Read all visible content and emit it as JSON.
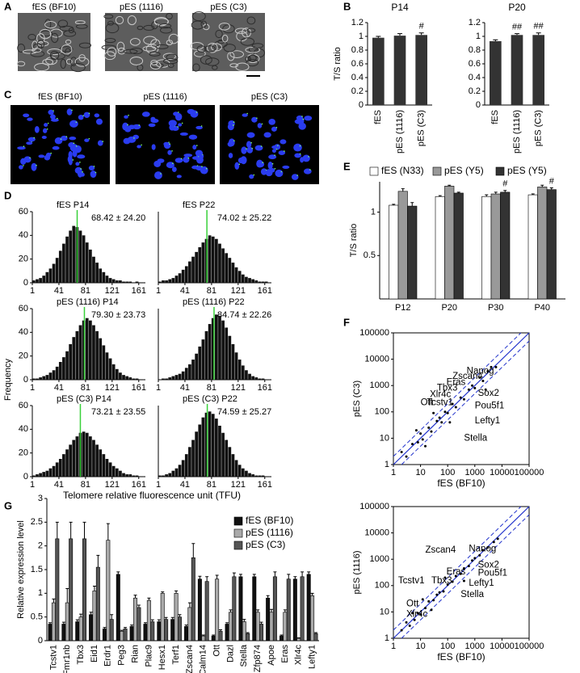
{
  "figure_panels": [
    {
      "panel": "A",
      "images": [
        "fES (BF10)",
        "pES (1116)",
        "pES (C3)"
      ]
    },
    {
      "panel": "C",
      "images": [
        "fES (BF10)",
        "pES (1116)",
        "pES (C3)"
      ]
    }
  ],
  "chart_data": [
    {
      "type": "bar",
      "panel": "B",
      "title": "P14",
      "ylabel": "T/S ratio",
      "categories": [
        "fES",
        "pES (1116)",
        "pES (C3)"
      ],
      "values": [
        0.98,
        1.01,
        1.02
      ],
      "errors": [
        0.02,
        0.03,
        0.03
      ],
      "significance": [
        null,
        null,
        "#"
      ],
      "color": "#333333",
      "ylim": [
        0,
        1.2
      ],
      "yticks": [
        0,
        0.2,
        0.4,
        0.6,
        0.8,
        1,
        1.2
      ]
    },
    {
      "type": "bar",
      "title": "P20",
      "categories": [
        "fES",
        "pES (1116)",
        "pES (C3)"
      ],
      "values": [
        0.93,
        1.02,
        1.02
      ],
      "errors": [
        0.02,
        0.02,
        0.03
      ],
      "significance": [
        null,
        "##",
        "##"
      ],
      "color": "#333333",
      "ylim": [
        0,
        1.2
      ],
      "yticks": [
        0,
        0.2,
        0.4,
        0.6,
        0.8,
        1,
        1.2
      ]
    },
    {
      "type": "histogram",
      "panel": "D",
      "title": "fES P14",
      "annotation": "68.42 ± 24.20",
      "mean": 68.42,
      "bins": [
        1,
        6,
        11,
        16,
        21,
        26,
        31,
        36,
        41,
        46,
        51,
        56,
        61,
        66,
        71,
        76,
        81,
        86,
        91,
        96,
        101,
        106,
        111,
        116,
        121,
        126,
        131,
        136,
        141,
        146,
        151,
        156,
        161,
        166,
        171
      ],
      "counts": [
        2,
        3,
        4,
        6,
        9,
        12,
        16,
        21,
        27,
        33,
        39,
        44,
        48,
        47,
        44,
        40,
        34,
        28,
        22,
        17,
        12,
        9,
        6,
        4,
        3,
        2,
        2,
        1,
        1,
        1,
        0,
        1,
        0,
        0
      ],
      "color": "#111111",
      "xlim": [
        1,
        171
      ],
      "xticks": [
        1,
        41,
        81,
        121,
        161
      ],
      "ylim": [
        0,
        60
      ],
      "yticks": [
        0,
        20,
        40,
        60
      ]
    },
    {
      "type": "histogram",
      "title": "fES P22",
      "annotation": "74.02 ± 25.22",
      "mean": 74.02,
      "bins": [
        1,
        6,
        11,
        16,
        21,
        26,
        31,
        36,
        41,
        46,
        51,
        56,
        61,
        66,
        71,
        76,
        81,
        86,
        91,
        96,
        101,
        106,
        111,
        116,
        121,
        126,
        131,
        136,
        141,
        146,
        151,
        156,
        161,
        166,
        171
      ],
      "counts": [
        1,
        2,
        2,
        3,
        4,
        6,
        8,
        11,
        14,
        18,
        22,
        26,
        30,
        34,
        37,
        40,
        39,
        37,
        33,
        29,
        25,
        21,
        17,
        13,
        10,
        7,
        5,
        4,
        3,
        2,
        1,
        1,
        1,
        0
      ],
      "color": "#111111",
      "xlim": [
        1,
        171
      ],
      "xticks": [
        1,
        41,
        81,
        121,
        161
      ],
      "ylim": [
        0,
        60
      ]
    },
    {
      "type": "histogram",
      "title": "pES (1116) P14",
      "annotation": "79.30 ± 23.73",
      "mean": 79.3,
      "ylabel": "Frequency",
      "bins": [
        1,
        6,
        11,
        16,
        21,
        26,
        31,
        36,
        41,
        46,
        51,
        56,
        61,
        66,
        71,
        76,
        81,
        86,
        91,
        96,
        101,
        106,
        111,
        116,
        121,
        126,
        131,
        136,
        141,
        146,
        151,
        156,
        161,
        166,
        171
      ],
      "counts": [
        1,
        1,
        2,
        3,
        4,
        6,
        8,
        11,
        15,
        19,
        24,
        30,
        36,
        41,
        46,
        50,
        52,
        50,
        46,
        41,
        35,
        29,
        23,
        18,
        13,
        9,
        6,
        4,
        3,
        2,
        1,
        1,
        0,
        0
      ],
      "color": "#111111",
      "xlim": [
        1,
        171
      ],
      "xticks": [
        1,
        41,
        81,
        121,
        161
      ],
      "ylim": [
        0,
        60
      ],
      "yticks": [
        0,
        20,
        40,
        60
      ]
    },
    {
      "type": "histogram",
      "title": "pES (1116) P22",
      "annotation": "84.74 ± 22.26",
      "mean": 84.74,
      "bins": [
        1,
        6,
        11,
        16,
        21,
        26,
        31,
        36,
        41,
        46,
        51,
        56,
        61,
        66,
        71,
        76,
        81,
        86,
        91,
        96,
        101,
        106,
        111,
        116,
        121,
        126,
        131,
        136,
        141,
        146,
        151,
        156,
        161,
        166,
        171
      ],
      "counts": [
        0,
        1,
        1,
        2,
        3,
        4,
        5,
        7,
        10,
        13,
        17,
        22,
        28,
        34,
        41,
        47,
        52,
        55,
        54,
        50,
        44,
        37,
        30,
        23,
        17,
        12,
        8,
        5,
        3,
        2,
        1,
        1,
        0,
        0
      ],
      "color": "#111111",
      "xlim": [
        1,
        171
      ],
      "xticks": [
        1,
        41,
        81,
        121,
        161
      ],
      "ylim": [
        0,
        60
      ]
    },
    {
      "type": "histogram",
      "title": "pES (C3) P14",
      "annotation": "73.21 ± 23.55",
      "mean": 73.21,
      "xlabel": "Telomere relative fluorescence unit (TFU)",
      "bins": [
        1,
        6,
        11,
        16,
        21,
        26,
        31,
        36,
        41,
        46,
        51,
        56,
        61,
        66,
        71,
        76,
        81,
        86,
        91,
        96,
        101,
        106,
        111,
        116,
        121,
        126,
        131,
        136,
        141,
        146,
        151,
        156,
        161,
        166,
        171
      ],
      "counts": [
        1,
        2,
        3,
        4,
        5,
        7,
        9,
        12,
        15,
        19,
        23,
        27,
        31,
        34,
        37,
        38,
        37,
        34,
        31,
        27,
        23,
        19,
        15,
        12,
        9,
        7,
        5,
        3,
        2,
        2,
        1,
        1,
        0,
        0
      ],
      "color": "#111111",
      "xlim": [
        1,
        171
      ],
      "xticks": [
        1,
        41,
        81,
        121,
        161
      ],
      "ylim": [
        0,
        60
      ],
      "yticks": [
        0,
        20,
        40,
        60
      ]
    },
    {
      "type": "histogram",
      "title": "pES (C3) P22",
      "annotation": "74.59 ± 25.27",
      "mean": 74.59,
      "bins": [
        1,
        6,
        11,
        16,
        21,
        26,
        31,
        36,
        41,
        46,
        51,
        56,
        61,
        66,
        71,
        76,
        81,
        86,
        91,
        96,
        101,
        106,
        111,
        116,
        121,
        126,
        131,
        136,
        141,
        146,
        151,
        156,
        161,
        166,
        171
      ],
      "counts": [
        1,
        1,
        2,
        3,
        5,
        7,
        10,
        14,
        19,
        25,
        31,
        38,
        44,
        50,
        54,
        55,
        53,
        49,
        43,
        37,
        31,
        25,
        19,
        14,
        10,
        7,
        5,
        3,
        2,
        1,
        1,
        1,
        0,
        0
      ],
      "color": "#111111",
      "xlim": [
        1,
        171
      ],
      "xticks": [
        1,
        41,
        81,
        121,
        161
      ],
      "ylim": [
        0,
        60
      ]
    },
    {
      "type": "grouped_bar",
      "panel": "E",
      "ylabel": "T/S ratio",
      "legend": "top",
      "categories": [
        "P12",
        "P20",
        "P30",
        "P40"
      ],
      "series": [
        {
          "name": "fES (N33)",
          "color": "#ffffff",
          "values": [
            1.08,
            1.18,
            1.18,
            1.2
          ],
          "errors": [
            0.01,
            0.01,
            0.02,
            0.01
          ]
        },
        {
          "name": "pES (Y5)",
          "color": "#999999",
          "values": [
            1.24,
            1.3,
            1.21,
            1.29
          ],
          "errors": [
            0.03,
            0.01,
            0.02,
            0.02
          ]
        },
        {
          "name": "pES (Y5)",
          "color": "#333333",
          "values": [
            1.07,
            1.22,
            1.23,
            1.26
          ],
          "errors": [
            0.04,
            0.01,
            0.02,
            0.02
          ],
          "significance": [
            null,
            null,
            "#",
            "#"
          ]
        }
      ],
      "ylim": [
        0,
        1.35
      ],
      "yticks": [
        0.5,
        1
      ]
    },
    {
      "type": "scatter",
      "panel": "F",
      "xlabel": "fES (BF10)",
      "ylabel": "pES (C3)",
      "scale": "log",
      "color": "#000000",
      "x": [
        2,
        3,
        5,
        8,
        10,
        12,
        20,
        25,
        40,
        50,
        60,
        80,
        100,
        150,
        200,
        300,
        400,
        600,
        800,
        1000,
        1500,
        2000,
        3000,
        4000,
        6000,
        7,
        15,
        30,
        120,
        2500
      ],
      "y": [
        3,
        2,
        6,
        7,
        15,
        9,
        25,
        18,
        45,
        60,
        40,
        100,
        90,
        200,
        150,
        350,
        300,
        700,
        1000,
        800,
        2000,
        1500,
        3500,
        5000,
        5000,
        20,
        5,
        90,
        40,
        700
      ],
      "annotations": [
        {
          "text": "Nanog",
          "x": 500,
          "y": 3500,
          "color": "#000000"
        },
        {
          "text": "Zscan4",
          "x": 150,
          "y": 2200,
          "color": "#d0201a"
        },
        {
          "text": "Eras",
          "x": 90,
          "y": 1300,
          "color": "#d0201a"
        },
        {
          "text": "Tbx3",
          "x": 40,
          "y": 800,
          "color": "#d0201a"
        },
        {
          "text": "Xlr4c",
          "x": 22,
          "y": 450,
          "color": "#d0201a"
        },
        {
          "text": "Ott",
          "x": 10,
          "y": 220,
          "color": "#d0201a"
        },
        {
          "text": "Tcstv1",
          "x": 17,
          "y": 220,
          "color": "#d0201a"
        },
        {
          "text": "Sox2",
          "x": 1300,
          "y": 500,
          "color": "#000000"
        },
        {
          "text": "Pou5f1",
          "x": 1000,
          "y": 170,
          "color": "#000000"
        },
        {
          "text": "Lefty1",
          "x": 1000,
          "y": 45,
          "color": "#2fbf2f"
        },
        {
          "text": "Stella",
          "x": 400,
          "y": 10,
          "color": "#2fbf2f"
        }
      ],
      "xlim": [
        1,
        100000
      ],
      "ylim": [
        1,
        100000
      ],
      "xticks": [
        1,
        10,
        100,
        1000,
        10000,
        100000
      ],
      "yticks": [
        1,
        10,
        100,
        1000,
        10000,
        100000
      ]
    },
    {
      "type": "scatter",
      "xlabel": "fES (BF10)",
      "ylabel": "pES (1116)",
      "scale": "log",
      "color": "#000000",
      "x": [
        2,
        3,
        4,
        6,
        8,
        10,
        15,
        20,
        30,
        40,
        50,
        70,
        100,
        150,
        200,
        300,
        400,
        600,
        800,
        1000,
        1500,
        2000,
        3000,
        5000,
        7000,
        5,
        12,
        25,
        80,
        400
      ],
      "y": [
        2,
        4,
        3,
        5,
        9,
        8,
        14,
        25,
        28,
        45,
        55,
        60,
        110,
        140,
        230,
        280,
        450,
        550,
        900,
        1100,
        1400,
        2200,
        2800,
        4500,
        6000,
        9,
        30,
        12,
        200,
        150
      ],
      "annotations": [
        {
          "text": "Zscan4",
          "x": 15,
          "y": 2200,
          "color": "#d0201a"
        },
        {
          "text": "Nanog",
          "x": 600,
          "y": 2500,
          "color": "#000000"
        },
        {
          "text": "Tcstv1",
          "x": 1.5,
          "y": 150,
          "color": "#d0201a"
        },
        {
          "text": "Tbx3",
          "x": 25,
          "y": 150,
          "color": "#d0201a"
        },
        {
          "text": "Eras",
          "x": 90,
          "y": 330,
          "color": "#000000"
        },
        {
          "text": "Sox2",
          "x": 1300,
          "y": 600,
          "color": "#000000"
        },
        {
          "text": "Pou5f1",
          "x": 1300,
          "y": 300,
          "color": "#000000"
        },
        {
          "text": "Lefty1",
          "x": 600,
          "y": 120,
          "color": "#000000"
        },
        {
          "text": "Stella",
          "x": 300,
          "y": 45,
          "color": "#000000"
        },
        {
          "text": "Ott",
          "x": 3,
          "y": 20,
          "color": "#000000"
        },
        {
          "text": "Xlr4c",
          "x": 3,
          "y": 8,
          "color": "#000000"
        }
      ],
      "xlim": [
        1,
        100000
      ],
      "ylim": [
        1,
        100000
      ],
      "xticks": [
        1,
        10,
        100,
        1000,
        10000,
        100000
      ],
      "yticks": [
        1,
        10,
        100,
        1000,
        10000,
        100000
      ]
    },
    {
      "type": "grouped_bar",
      "panel": "G",
      "ylabel": "Relative expression level",
      "legend": "upper right",
      "categories": [
        "Tcstv1",
        "Fmr1nb",
        "Tbx3",
        "Eid1",
        "Erdr1",
        "Peg3",
        "Rian",
        "Plac9",
        "Hesx1",
        "Terf1",
        "Zscan4",
        "Calm14",
        "Ott",
        "Dazl",
        "Stella",
        "Zfp874",
        "Apoe",
        "Eras",
        "Xlr4c",
        "Lefty1"
      ],
      "series": [
        {
          "name": "fES (BF10)",
          "color": "#111111",
          "values": [
            0.35,
            0.35,
            0.4,
            0.55,
            0.25,
            1.4,
            0.3,
            0.35,
            0.4,
            0.45,
            0.3,
            1.3,
            0.1,
            0.35,
            1.35,
            1.35,
            0.9,
            0.1,
            1.3,
            1.4
          ],
          "errors": [
            0.03,
            0.04,
            0.04,
            0.05,
            0.03,
            0.05,
            0.03,
            0.03,
            0.04,
            0.04,
            0.03,
            0.06,
            0.02,
            0.03,
            0.05,
            0.05,
            0.05,
            0.02,
            0.05,
            0.05
          ]
        },
        {
          "name": "pES (1116)",
          "color": "#aaaaaa",
          "values": [
            0.8,
            0.8,
            0.5,
            1.05,
            2.12,
            0.2,
            0.9,
            0.85,
            1.0,
            1.0,
            0.7,
            0.1,
            1.3,
            0.6,
            0.4,
            0.6,
            0.6,
            0.6,
            0.05,
            0.95
          ],
          "errors": [
            0.08,
            0.3,
            0.06,
            0.1,
            0.35,
            0.02,
            0.06,
            0.05,
            0.03,
            0.05,
            0.1,
            0.02,
            0.08,
            0.05,
            0.05,
            0.05,
            0.06,
            0.05,
            0.01,
            0.05
          ]
        },
        {
          "name": "pES (C3)",
          "color": "#555555",
          "values": [
            2.15,
            2.15,
            2.15,
            1.55,
            0.45,
            0.25,
            0.7,
            0.4,
            0.45,
            0.5,
            1.75,
            1.25,
            0.2,
            1.35,
            0.15,
            0.35,
            1.35,
            1.3,
            1.35,
            0.15
          ],
          "errors": [
            0.35,
            0.35,
            0.35,
            0.25,
            0.1,
            0.03,
            0.05,
            0.04,
            0.04,
            0.05,
            0.3,
            0.1,
            0.03,
            0.08,
            0.02,
            0.04,
            0.1,
            0.1,
            0.1,
            0.02
          ]
        }
      ],
      "ylim": [
        0,
        3
      ],
      "yticks": [
        0,
        0.5,
        1,
        1.5,
        2,
        2.5,
        3
      ]
    }
  ]
}
